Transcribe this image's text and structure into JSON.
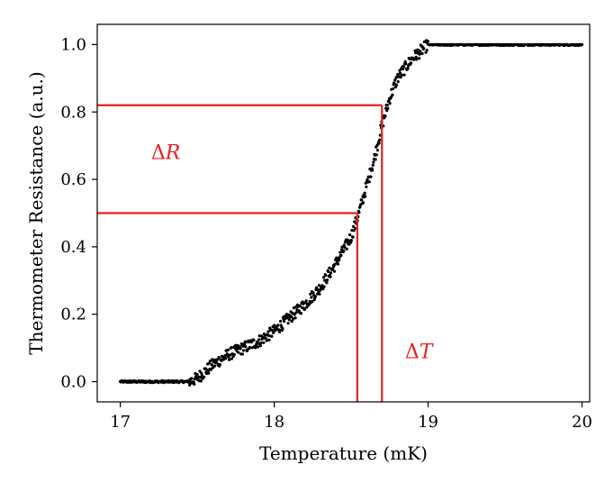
{
  "chart_data": {
    "type": "scatter",
    "xlabel": "Temperature (mK)",
    "ylabel": "Thermometer Resistance (a.u.)",
    "xlim": [
      16.85,
      20.05
    ],
    "ylim": [
      -0.06,
      1.06
    ],
    "xticks": [
      {
        "value": 17,
        "label": "17"
      },
      {
        "value": 18,
        "label": "18"
      },
      {
        "value": 19,
        "label": "19"
      },
      {
        "value": 20,
        "label": "20"
      }
    ],
    "yticks": [
      {
        "value": 0.0,
        "label": "0.0"
      },
      {
        "value": 0.2,
        "label": "0.2"
      },
      {
        "value": 0.4,
        "label": "0.4"
      },
      {
        "value": 0.6,
        "label": "0.6"
      },
      {
        "value": 0.8,
        "label": "0.8"
      },
      {
        "value": 1.0,
        "label": "1.0"
      }
    ],
    "grid": false,
    "series": [
      {
        "color": "#000000",
        "marker": "dot",
        "curve_points": [
          [
            17.0,
            0.0
          ],
          [
            17.3,
            0.0
          ],
          [
            17.45,
            0.0
          ],
          [
            17.5,
            0.01
          ],
          [
            17.6,
            0.05
          ],
          [
            17.7,
            0.08
          ],
          [
            17.8,
            0.1
          ],
          [
            17.9,
            0.12
          ],
          [
            18.0,
            0.15
          ],
          [
            18.1,
            0.19
          ],
          [
            18.2,
            0.23
          ],
          [
            18.3,
            0.28
          ],
          [
            18.4,
            0.35
          ],
          [
            18.5,
            0.43
          ],
          [
            18.55,
            0.5
          ],
          [
            18.6,
            0.58
          ],
          [
            18.65,
            0.66
          ],
          [
            18.7,
            0.76
          ],
          [
            18.75,
            0.84
          ],
          [
            18.8,
            0.9
          ],
          [
            18.9,
            0.96
          ],
          [
            19.0,
            1.0
          ],
          [
            20.0,
            1.0
          ]
        ],
        "x_range": [
          17.0,
          20.0
        ],
        "point_count": 900,
        "noise": 0.01
      }
    ],
    "annotations": {
      "color": "#e8201f",
      "delta_r": {
        "symbol": "Δ",
        "var": "R",
        "x": 17.2,
        "y": 0.66
      },
      "delta_t": {
        "symbol": "Δ",
        "var": "T",
        "x": 18.85,
        "y": 0.07
      },
      "h_lines": [
        {
          "y": 0.82,
          "x_to": 18.7
        },
        {
          "y": 0.5,
          "x_to": 18.54
        }
      ],
      "v_lines": [
        {
          "x": 18.54,
          "y_to": 0.5
        },
        {
          "x": 18.7,
          "y_to": 0.82
        }
      ]
    }
  }
}
